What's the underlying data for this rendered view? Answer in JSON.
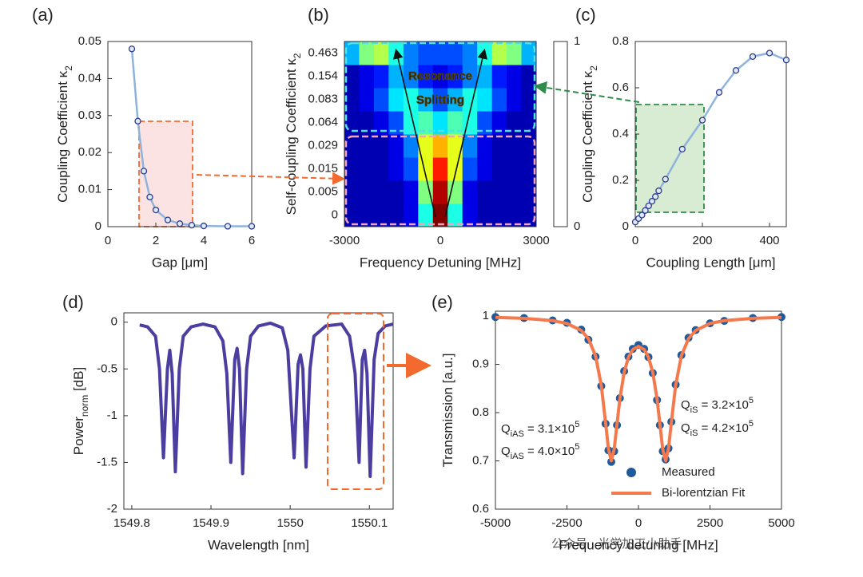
{
  "chart_data": [
    {
      "type": "line",
      "panel": "(a)",
      "xlabel": "Gap [μm]",
      "ylabel": "Coupling Coefficient κ",
      "ylabel_sub": "2",
      "x": [
        1,
        1.25,
        1.5,
        1.75,
        2,
        2.5,
        3,
        3.5,
        4,
        5,
        6
      ],
      "series": [
        {
          "color": "#8fb4dc",
          "marker_color": "#2b3a8c",
          "line": true,
          "marker": true,
          "values": [
            0.048,
            0.0285,
            0.015,
            0.008,
            0.0045,
            0.0018,
            0.0008,
            0.0004,
            0.0002,
            0.0001,
            0.0001
          ]
        }
      ],
      "xlim": [
        0,
        6
      ],
      "xticks": [
        0,
        2,
        4,
        6
      ],
      "ylim": [
        0,
        0.05
      ],
      "yticks": [
        0,
        0.01,
        0.02,
        0.03,
        0.04,
        0.05
      ]
    },
    {
      "type": "heatmap",
      "panel": "(b)",
      "xlabel": "Frequency Detuning [MHz]",
      "ylabel": "Self-coupling Coefficient κ",
      "ylabel_sub": "2",
      "annotation": [
        "Resonance",
        "Splitting"
      ],
      "y_categories": [
        0,
        0.005,
        0.015,
        0.029,
        0.064,
        0.083,
        0.154,
        0.463
      ],
      "x": [
        -3000,
        -2500,
        -2000,
        -1500,
        -1000,
        -500,
        0,
        500,
        1000,
        1500,
        2000,
        2500,
        3000
      ],
      "values": [
        [
          0.05,
          0.05,
          0.05,
          0.05,
          0.1,
          0.4,
          1.0,
          0.4,
          0.1,
          0.05,
          0.05,
          0.05,
          0.05
        ],
        [
          0.05,
          0.05,
          0.05,
          0.05,
          0.1,
          0.5,
          0.95,
          0.5,
          0.1,
          0.05,
          0.05,
          0.05,
          0.05
        ],
        [
          0.05,
          0.05,
          0.05,
          0.1,
          0.2,
          0.6,
          0.85,
          0.6,
          0.2,
          0.1,
          0.05,
          0.05,
          0.05
        ],
        [
          0.05,
          0.05,
          0.05,
          0.1,
          0.25,
          0.6,
          0.7,
          0.6,
          0.25,
          0.1,
          0.05,
          0.05,
          0.05
        ],
        [
          0.05,
          0.05,
          0.1,
          0.2,
          0.4,
          0.45,
          0.35,
          0.45,
          0.4,
          0.2,
          0.1,
          0.05,
          0.05
        ],
        [
          0.05,
          0.1,
          0.2,
          0.35,
          0.4,
          0.3,
          0.2,
          0.3,
          0.4,
          0.35,
          0.2,
          0.1,
          0.05
        ],
        [
          0.05,
          0.1,
          0.15,
          0.3,
          0.25,
          0.15,
          0.1,
          0.15,
          0.25,
          0.3,
          0.15,
          0.1,
          0.05
        ],
        [
          0.3,
          0.5,
          0.55,
          0.4,
          0.25,
          0.2,
          0.2,
          0.2,
          0.25,
          0.4,
          0.55,
          0.5,
          0.3
        ]
      ],
      "xlim": [
        -3000,
        3000
      ],
      "xticks": [
        -3000,
        0,
        3000
      ],
      "clim": [
        0,
        1
      ],
      "cticks": [
        0,
        1
      ],
      "colormap": "jet"
    },
    {
      "type": "line",
      "panel": "(c)",
      "xlabel": "Coupling Length [μm]",
      "ylabel": "Coupling Coefficient κ",
      "ylabel_sub": "2",
      "x": [
        0,
        10,
        20,
        30,
        40,
        50,
        60,
        70,
        90,
        140,
        200,
        250,
        300,
        350,
        400,
        450
      ],
      "series": [
        {
          "color": "#8fb4dc",
          "marker_color": "#2b3a8c",
          "line": true,
          "marker": true,
          "values": [
            0.02,
            0.035,
            0.05,
            0.07,
            0.09,
            0.11,
            0.13,
            0.155,
            0.205,
            0.335,
            0.46,
            0.58,
            0.675,
            0.735,
            0.75,
            0.72
          ]
        }
      ],
      "xlim": [
        0,
        450
      ],
      "xticks": [
        0,
        200,
        400
      ],
      "ylim": [
        0,
        0.8
      ],
      "yticks": [
        0,
        0.2,
        0.4,
        0.6,
        0.8
      ]
    },
    {
      "type": "line",
      "panel": "(d)",
      "xlabel": "Wavelength [nm]",
      "ylabel": "Power",
      "ylabel_sub": "norm",
      "ylabel_unit": " [dB]",
      "x": [
        1549.81,
        1549.82,
        1549.83,
        1549.835,
        1549.84,
        1549.845,
        1549.848,
        1549.851,
        1549.855,
        1549.86,
        1549.865,
        1549.875,
        1549.89,
        1549.905,
        1549.915,
        1549.92,
        1549.925,
        1549.93,
        1549.933,
        1549.936,
        1549.94,
        1549.945,
        1549.95,
        1549.96,
        1549.975,
        1549.99,
        1549.997,
        1550.005,
        1550.01,
        1550.013,
        1550.016,
        1550.02,
        1550.025,
        1550.03,
        1550.045,
        1550.065,
        1550.075,
        1550.082,
        1550.087,
        1550.091,
        1550.094,
        1550.097,
        1550.101,
        1550.106,
        1550.111,
        1550.12,
        1550.13
      ],
      "series": [
        {
          "color": "#4b3ea0",
          "line": true,
          "marker": false,
          "values": [
            -0.03,
            -0.05,
            -0.15,
            -0.5,
            -1.45,
            -0.5,
            -0.3,
            -0.55,
            -1.6,
            -0.5,
            -0.15,
            -0.05,
            -0.02,
            -0.05,
            -0.2,
            -0.55,
            -1.5,
            -0.4,
            -0.28,
            -0.5,
            -1.62,
            -0.5,
            -0.15,
            -0.04,
            -0.01,
            -0.06,
            -0.3,
            -1.45,
            -0.45,
            -0.35,
            -0.5,
            -1.55,
            -0.5,
            -0.15,
            -0.04,
            -0.02,
            -0.15,
            -0.55,
            -1.5,
            -0.4,
            -0.3,
            -0.55,
            -1.65,
            -0.4,
            -0.12,
            -0.04,
            -0.02
          ]
        }
      ],
      "xlim": [
        1549.79,
        1550.13
      ],
      "xticks": [
        1549.8,
        1549.9,
        1550,
        1550.1
      ],
      "ylim": [
        -2,
        0.1
      ],
      "yticks": [
        -2,
        -1.5,
        -1,
        -0.5,
        0
      ]
    },
    {
      "type": "line",
      "panel": "(e)",
      "xlabel": "Frequency detuning [MHz]",
      "ylabel": "Transmission [a.u.]",
      "x": [
        -5000,
        -4000,
        -3000,
        -2500,
        -2000,
        -1750,
        -1500,
        -1300,
        -1150,
        -1050,
        -950,
        -850,
        -750,
        -650,
        -500,
        -350,
        -200,
        0,
        200,
        350,
        500,
        650,
        750,
        850,
        950,
        1050,
        1150,
        1300,
        1500,
        1750,
        2000,
        2500,
        3000,
        4000,
        5000
      ],
      "series": [
        {
          "name": "Measured",
          "color": "#1f5b9c",
          "line": false,
          "marker": true,
          "values": [
            0.998,
            0.996,
            0.991,
            0.986,
            0.972,
            0.951,
            0.916,
            0.855,
            0.777,
            0.722,
            0.698,
            0.72,
            0.774,
            0.83,
            0.886,
            0.916,
            0.932,
            0.94,
            0.932,
            0.915,
            0.882,
            0.826,
            0.774,
            0.72,
            0.703,
            0.726,
            0.781,
            0.858,
            0.919,
            0.955,
            0.971,
            0.985,
            0.99,
            0.996,
            0.998
          ]
        },
        {
          "name": "Bi-lorentzian Fit",
          "color": "#f47a4d",
          "line": true,
          "marker": false,
          "values": [
            0.9972,
            0.9953,
            0.9906,
            0.9847,
            0.9702,
            0.9533,
            0.9177,
            0.8567,
            0.7797,
            0.7253,
            0.7002,
            0.7235,
            0.7761,
            0.8285,
            0.8837,
            0.9146,
            0.9306,
            0.9372,
            0.9306,
            0.9146,
            0.8837,
            0.8285,
            0.7761,
            0.7235,
            0.7002,
            0.7253,
            0.7797,
            0.8567,
            0.9177,
            0.9533,
            0.9702,
            0.9847,
            0.9906,
            0.9953,
            0.9972
          ]
        }
      ],
      "annotations": [
        {
          "q": "Q",
          "sub": "iAS",
          "eq": " = 3.1×10",
          "sup": "5"
        },
        {
          "q": "Q",
          "sub": "iAS",
          "eq": " = 4.0×10",
          "sup": "5"
        },
        {
          "q": "Q",
          "sub": "iS",
          "eq": " = 3.2×10",
          "sup": "5"
        },
        {
          "q": "Q",
          "sub": "iS",
          "eq": " = 4.2×10",
          "sup": "5"
        }
      ],
      "xlim": [
        -5000,
        5000
      ],
      "xticks": [
        -5000,
        -2500,
        0,
        2500,
        5000
      ],
      "ylim": [
        0.6,
        1.01
      ],
      "yticks": [
        0.6,
        0.7,
        0.8,
        0.9,
        1
      ]
    }
  ],
  "watermark": "公众号 · 光学加工小助手"
}
